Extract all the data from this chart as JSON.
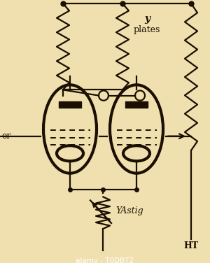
{
  "bg_color": "#f0e0b0",
  "line_color": "#1a0f00",
  "text_color": "#1a0f00",
  "figsize": [
    3.0,
    3.76
  ],
  "dpi": 100,
  "label_y": "y",
  "label_plates": "plates",
  "label_er": "er",
  "label_yastig": "YAstig",
  "label_ht": "HT",
  "watermark_text": "alamy - T0DBT2",
  "watermark_bg": "#111111",
  "watermark_color": "#ffffff"
}
